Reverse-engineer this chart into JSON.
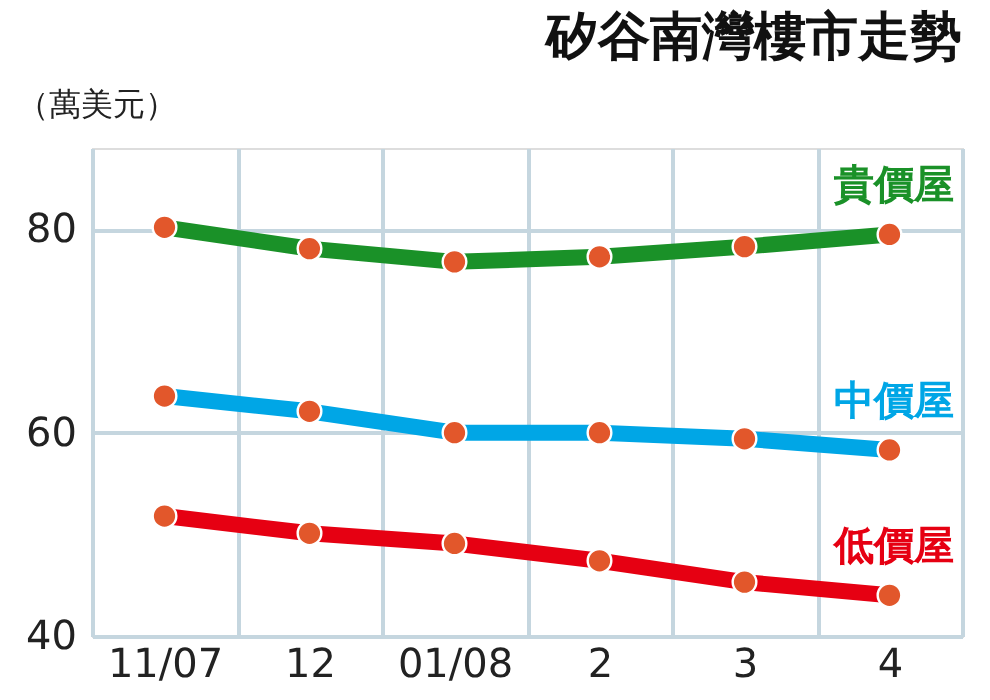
{
  "chart_data": {
    "type": "line",
    "title": "矽谷南灣樓市走勢",
    "ylabel": "（萬美元）",
    "categories": [
      "11/07",
      "12",
      "01/08",
      "2",
      "3",
      "4"
    ],
    "series": [
      {
        "name": "貴價屋",
        "color": "#1a9128",
        "values": [
          80.2,
          78.1,
          76.8,
          77.3,
          78.3,
          79.5
        ]
      },
      {
        "name": "中價屋",
        "color": "#00a6e6",
        "values": [
          63.6,
          62.1,
          60.0,
          60.0,
          59.4,
          58.3
        ]
      },
      {
        "name": "低價屋",
        "color": "#e60012",
        "values": [
          51.8,
          50.1,
          49.1,
          47.4,
          45.3,
          44.0
        ]
      }
    ],
    "ylim": [
      40,
      88
    ],
    "yticks": [
      40,
      60,
      80
    ],
    "grid": true,
    "marker": "circle",
    "line_style": "solid",
    "legend": false
  }
}
